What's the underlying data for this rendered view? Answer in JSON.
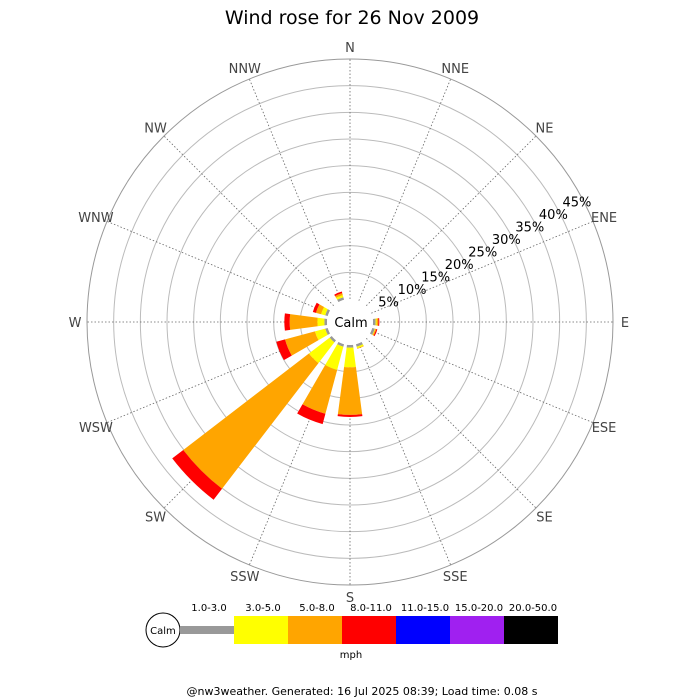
{
  "chart_data": {
    "type": "windrose",
    "title": "Wind rose for 26 Nov 2009",
    "directions": [
      "N",
      "NNE",
      "NE",
      "ENE",
      "E",
      "ESE",
      "SE",
      "SSE",
      "S",
      "SSW",
      "SW",
      "WSW",
      "W",
      "WNW",
      "NW",
      "NNW"
    ],
    "radial_ticks": [
      "5%",
      "10%",
      "15%",
      "20%",
      "25%",
      "30%",
      "35%",
      "40%",
      "45%"
    ],
    "radial_max_percent": 45,
    "calm_label": "Calm",
    "speed_unit": "mph",
    "speed_bins": [
      {
        "label": "1.0-3.0",
        "color": "#999999"
      },
      {
        "label": "3.0-5.0",
        "color": "#ffff00"
      },
      {
        "label": "5.0-8.0",
        "color": "#ffa500"
      },
      {
        "label": "8.0-11.0",
        "color": "#ff0000"
      },
      {
        "label": "11.0-15.0",
        "color": "#0000ff"
      },
      {
        "label": "15.0-20.0",
        "color": "#a020f0"
      },
      {
        "label": "20.0-50.0",
        "color": "#000000"
      }
    ],
    "cumulative_percent": {
      "E": [
        0.5,
        0.7,
        1.0,
        1.2,
        1.2,
        1.2,
        1.2
      ],
      "ESE": [
        0.5,
        0.6,
        0.8,
        1.0,
        1.0,
        1.0,
        1.0
      ],
      "SSE": [
        0.5,
        0.8,
        0.9,
        0.9,
        0.9,
        0.9,
        0.9
      ],
      "S": [
        0.5,
        4.2,
        13.1,
        13.5,
        13.5,
        13.5,
        13.5
      ],
      "SSW": [
        0.5,
        5.0,
        13.5,
        15.5,
        15.5,
        15.5,
        15.5
      ],
      "SW": [
        0.5,
        5.4,
        35.1,
        37.7,
        37.7,
        37.7,
        37.7
      ],
      "WSW": [
        0.5,
        2.5,
        8.3,
        10.0,
        10.0,
        10.0,
        10.0
      ],
      "W": [
        0.5,
        1.8,
        7.0,
        8.0,
        8.0,
        8.0,
        8.0
      ],
      "WNW": [
        0.5,
        1.3,
        2.3,
        2.9,
        2.9,
        2.9,
        2.9
      ],
      "NNW": [
        0.5,
        0.9,
        1.3,
        1.6,
        1.6,
        1.6,
        1.6
      ]
    },
    "legend_placement": "bottom"
  },
  "footer": "@nw3weather.  Generated: 16 Jul 2025 08:39; Load time: 0.08 s"
}
